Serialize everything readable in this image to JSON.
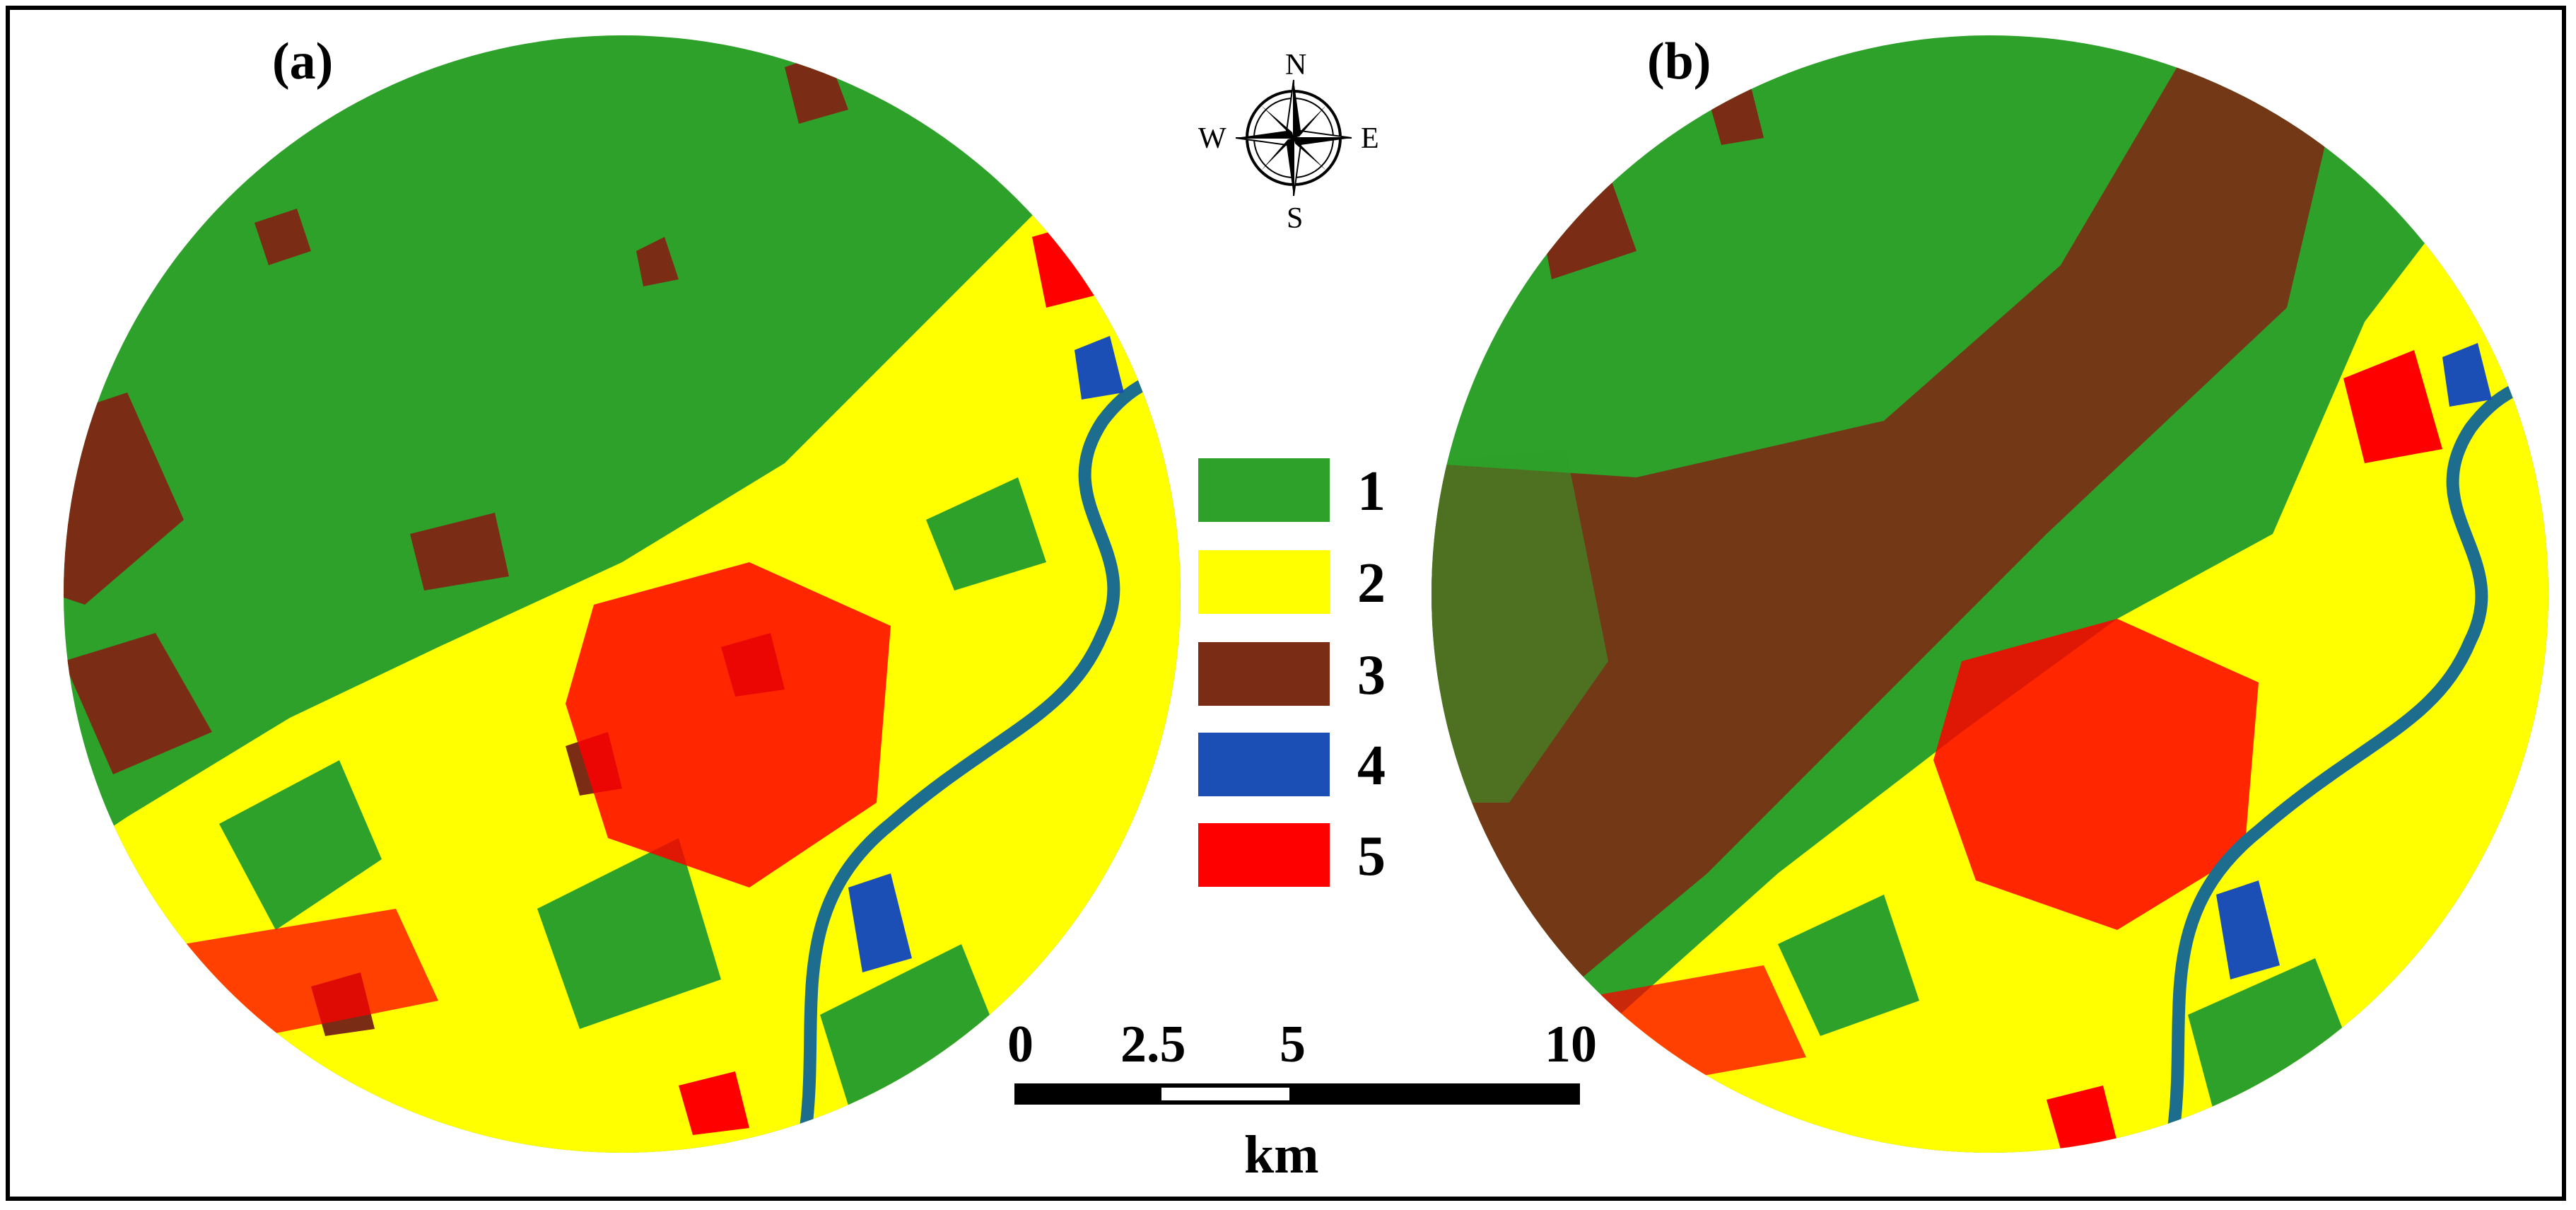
{
  "panels": [
    {
      "label": "(a)"
    },
    {
      "label": "(b)"
    }
  ],
  "compass": {
    "north": "N",
    "south": "S",
    "east": "E",
    "west": "W"
  },
  "legend": {
    "items": [
      {
        "label": "1",
        "color": "#2da12a"
      },
      {
        "label": "2",
        "color": "#ffff00"
      },
      {
        "label": "3",
        "color": "#7b2c14"
      },
      {
        "label": "4",
        "color": "#1c4fb5"
      },
      {
        "label": "5",
        "color": "#ff0000"
      }
    ]
  },
  "scale_bar": {
    "ticks": [
      "0",
      "2.5",
      "5",
      "10"
    ],
    "unit": "km"
  },
  "colors": {
    "river": "#1d6d8e",
    "frame": "#000000"
  }
}
